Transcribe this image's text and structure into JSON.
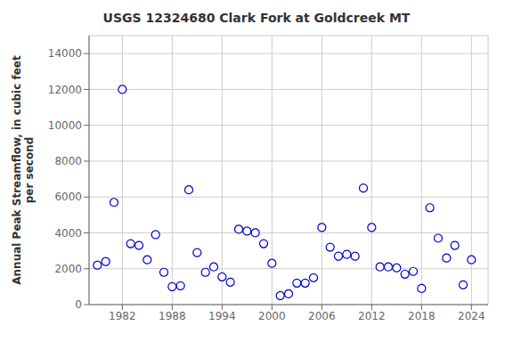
{
  "chart_data": {
    "type": "scatter",
    "title": "USGS 12324680 Clark Fork at Goldcreek MT",
    "ylabel": "Annual Peak Streamflow, in cubic feet\nper second",
    "x": [
      1979,
      1980,
      1981,
      1982,
      1983,
      1984,
      1985,
      1986,
      1987,
      1988,
      1989,
      1990,
      1991,
      1992,
      1993,
      1994,
      1995,
      1996,
      1997,
      1998,
      1999,
      2000,
      2001,
      2002,
      2003,
      2004,
      2005,
      2006,
      2007,
      2008,
      2009,
      2010,
      2011,
      2012,
      2013,
      2014,
      2015,
      2016,
      2017,
      2018,
      2019,
      2020,
      2021,
      2022,
      2023,
      2024
    ],
    "values": [
      2200,
      2400,
      5700,
      12000,
      3400,
      3300,
      2500,
      3900,
      1800,
      1000,
      1050,
      6400,
      2900,
      1800,
      2100,
      1550,
      1250,
      4200,
      4100,
      4000,
      3400,
      2300,
      500,
      600,
      1200,
      1200,
      1500,
      4300,
      3200,
      2700,
      2800,
      2700,
      6500,
      4300,
      2100,
      2100,
      2050,
      1700,
      1850,
      900,
      5400,
      3700,
      2600,
      3300,
      1100,
      2500
    ],
    "xlim": [
      1978,
      2026
    ],
    "ylim": [
      0,
      15000
    ],
    "xticks": [
      1982,
      1988,
      1994,
      2000,
      2006,
      2012,
      2018,
      2024
    ],
    "yticks": [
      0,
      2000,
      4000,
      6000,
      8000,
      10000,
      12000,
      14000
    ],
    "color": "#0000cc",
    "marker": "open_circle",
    "grid": true
  }
}
